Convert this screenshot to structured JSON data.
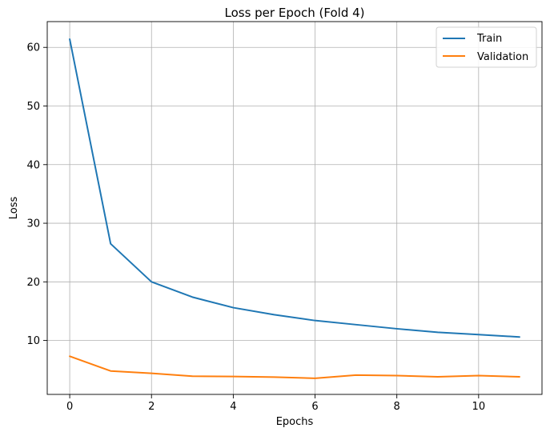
{
  "chart_data": {
    "type": "line",
    "title": "Loss per Epoch (Fold 4)",
    "xlabel": "Epochs",
    "ylabel": "Loss",
    "xlim": [
      -0.55,
      11.55
    ],
    "ylim": [
      0.8,
      64.4
    ],
    "xticks": [
      0,
      2,
      4,
      6,
      8,
      10
    ],
    "yticks": [
      10,
      20,
      30,
      40,
      50,
      60
    ],
    "grid": true,
    "legend_position": "top-right",
    "x": [
      0,
      1,
      2,
      3,
      4,
      5,
      6,
      7,
      8,
      9,
      10,
      11
    ],
    "series": [
      {
        "name": "Train",
        "color": "#1f77b4",
        "values": [
          61.4,
          26.5,
          20.0,
          17.4,
          15.6,
          14.4,
          13.4,
          12.7,
          12.0,
          11.4,
          11.0,
          10.6
        ]
      },
      {
        "name": "Validation",
        "color": "#ff7f0e",
        "values": [
          7.3,
          4.8,
          4.4,
          3.9,
          3.85,
          3.75,
          3.55,
          4.1,
          4.0,
          3.8,
          4.0,
          3.8
        ]
      }
    ]
  }
}
